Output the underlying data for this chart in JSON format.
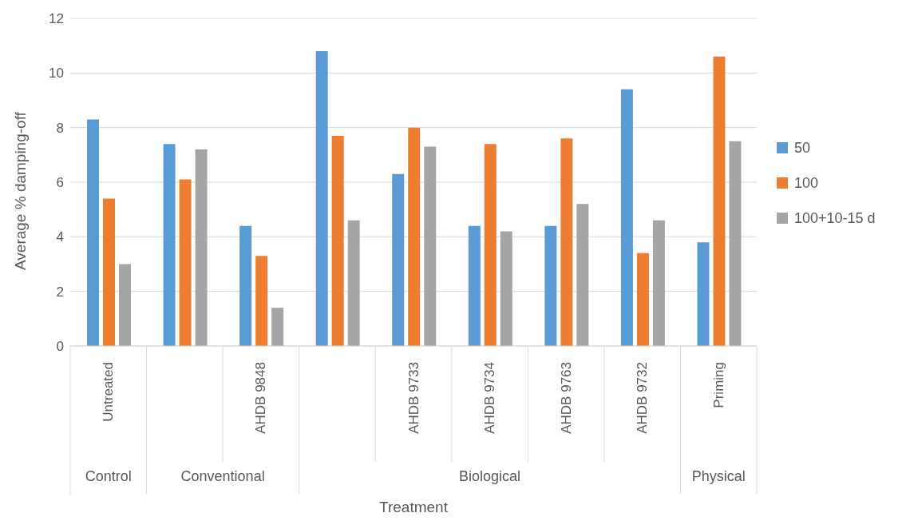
{
  "chart_data": {
    "type": "bar",
    "xlabel": "Treatment",
    "ylabel": "Average % damping-off",
    "categories": [
      "Untreated",
      null,
      "AHDB 9848",
      null,
      "AHDB 9733",
      "AHDB 9734",
      "AHDB 9763",
      "AHDB 9732",
      "Priming"
    ],
    "series": [
      {
        "name": "50",
        "color": "#5b9bd5",
        "values": [
          8.3,
          7.4,
          4.4,
          10.8,
          6.3,
          4.4,
          4.4,
          9.4,
          3.8
        ]
      },
      {
        "name": "100",
        "color": "#ed7d31",
        "values": [
          5.4,
          6.1,
          3.3,
          7.7,
          8.0,
          7.4,
          7.6,
          3.4,
          10.6
        ]
      },
      {
        "name": "100+10-15 d",
        "color": "#a5a5a5",
        "values": [
          3.0,
          7.2,
          1.4,
          4.6,
          7.3,
          4.2,
          5.2,
          4.6,
          7.5
        ]
      }
    ],
    "annotations": [
      "Control",
      "Conventional",
      "Biological",
      "Physical"
    ],
    "ylim": [
      0,
      12
    ],
    "yticks": [
      0,
      2,
      4,
      6,
      8,
      10,
      12
    ],
    "grid": "y",
    "legend": "right"
  }
}
